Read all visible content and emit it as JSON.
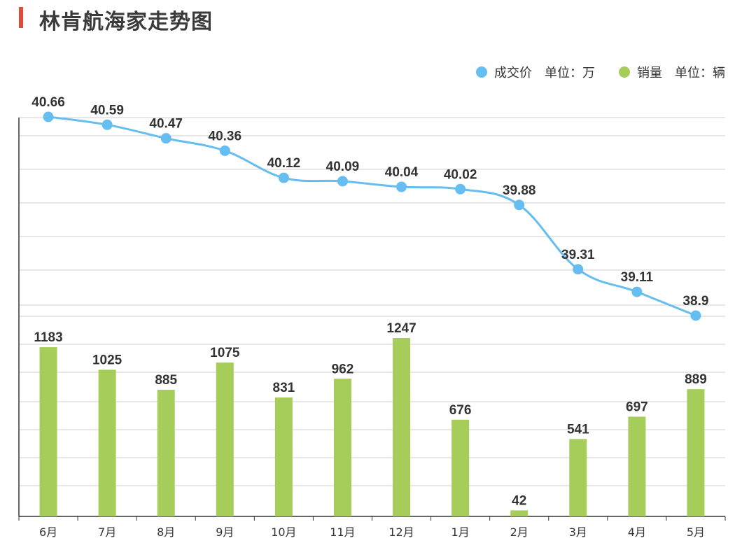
{
  "title": "林肯航海家走势图",
  "colors": {
    "accent": "#e04b3a",
    "price": "#65bdf0",
    "sales": "#a6cd5a",
    "grid": "#cfcfcf"
  },
  "legend": {
    "price": {
      "label": "成交价",
      "unit": "单位：万"
    },
    "sales": {
      "label": "销量",
      "unit": "单位：辆"
    }
  },
  "chart_data": {
    "type": "bar",
    "categories": [
      "6月",
      "7月",
      "8月",
      "9月",
      "10月",
      "11月",
      "12月",
      "1月",
      "2月",
      "3月",
      "4月",
      "5月"
    ],
    "series": [
      {
        "name": "成交价",
        "type": "line",
        "values": [
          40.66,
          40.59,
          40.47,
          40.36,
          40.12,
          40.09,
          40.04,
          40.02,
          39.88,
          39.31,
          39.11,
          38.9
        ]
      },
      {
        "name": "销量",
        "type": "bar",
        "values": [
          1183,
          1025,
          885,
          1075,
          831,
          962,
          1247,
          676,
          42,
          541,
          697,
          889
        ]
      }
    ],
    "legend_position": "top-right",
    "grid": true
  }
}
